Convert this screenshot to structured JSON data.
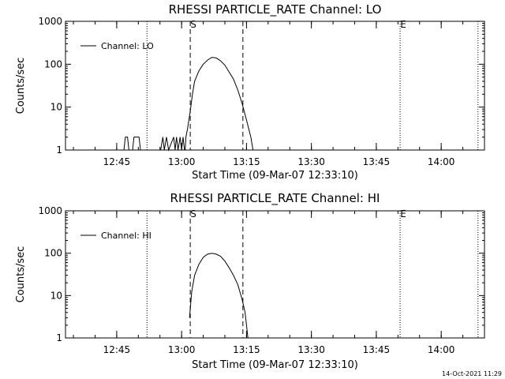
{
  "footer": {
    "timestamp": "14-Oct-2021 11:29"
  },
  "chart_data": [
    {
      "type": "line",
      "title": "RHESSI PARTICLE_RATE Channel: LO",
      "xlabel": "Start Time (09-Mar-07 12:33:10)",
      "ylabel": "Counts/sec",
      "yscale": "log",
      "ylim": [
        1,
        1000
      ],
      "yticks": [
        1,
        10,
        100,
        1000
      ],
      "ytick_labels": [
        "1",
        "10",
        "100",
        "1000"
      ],
      "xlim": [
        "12:33:10",
        "14:10"
      ],
      "xticks": [
        "12:45",
        "13:00",
        "13:15",
        "13:30",
        "13:45",
        "14:00"
      ],
      "legend": {
        "label": "Channel: LO",
        "position": "top-left"
      },
      "markers": {
        "start_label": "S",
        "start_time": "13:02:00",
        "end_label": "E",
        "end_time": "13:50:30",
        "dashed_lines": [
          "13:02:00",
          "13:14:10"
        ],
        "dotted_lines": [
          "12:52:00",
          "13:50:30",
          "14:08:30"
        ]
      },
      "series": [
        {
          "name": "Channel: LO",
          "segments": [
            [
              [
                "12:46:40",
                1
              ],
              [
                "12:47:00",
                2
              ],
              [
                "12:47:30",
                2
              ],
              [
                "12:47:50",
                1
              ]
            ],
            [
              [
                "12:48:40",
                1
              ],
              [
                "12:49:00",
                2
              ],
              [
                "12:50:10",
                2
              ],
              [
                "12:50:30",
                1
              ]
            ],
            [
              [
                "12:55:10",
                1
              ],
              [
                "12:55:40",
                2
              ],
              [
                "12:56:00",
                1
              ],
              [
                "12:56:30",
                2
              ],
              [
                "12:57:00",
                1
              ],
              [
                "12:58:10",
                2
              ],
              [
                "12:58:30",
                1
              ],
              [
                "12:58:50",
                2
              ],
              [
                "12:59:10",
                1
              ],
              [
                "12:59:40",
                2
              ],
              [
                "13:00:00",
                1
              ],
              [
                "13:00:20",
                2
              ],
              [
                "13:00:40",
                1
              ],
              [
                "13:00:50",
                1
              ],
              [
                "13:01:00",
                2
              ],
              [
                "13:01:20",
                3
              ],
              [
                "13:02:00",
                8
              ],
              [
                "13:02:30",
                20
              ],
              [
                "13:03:00",
                40
              ],
              [
                "13:04:00",
                70
              ],
              [
                "13:05:00",
                100
              ],
              [
                "13:06:00",
                125
              ],
              [
                "13:07:00",
                145
              ],
              [
                "13:08:00",
                140
              ],
              [
                "13:09:00",
                120
              ],
              [
                "13:10:00",
                95
              ],
              [
                "13:11:00",
                65
              ],
              [
                "13:12:00",
                45
              ],
              [
                "13:13:00",
                25
              ],
              [
                "13:14:00",
                12
              ],
              [
                "13:15:00",
                5
              ],
              [
                "13:16:00",
                2
              ],
              [
                "13:16:30",
                1
              ]
            ]
          ]
        }
      ]
    },
    {
      "type": "line",
      "title": "RHESSI PARTICLE_RATE Channel: HI",
      "xlabel": "Start Time (09-Mar-07 12:33:10)",
      "ylabel": "Counts/sec",
      "yscale": "log",
      "ylim": [
        1,
        1000
      ],
      "yticks": [
        1,
        10,
        100,
        1000
      ],
      "ytick_labels": [
        "1",
        "10",
        "100",
        "1000"
      ],
      "xlim": [
        "12:33:10",
        "14:10"
      ],
      "xticks": [
        "12:45",
        "13:00",
        "13:15",
        "13:30",
        "13:45",
        "14:00"
      ],
      "legend": {
        "label": "Channel: HI",
        "position": "top-left"
      },
      "markers": {
        "start_label": "S",
        "start_time": "13:02:00",
        "end_label": "E",
        "end_time": "13:50:30",
        "dashed_lines": [
          "13:02:00",
          "13:14:10"
        ],
        "dotted_lines": [
          "12:52:00",
          "13:50:30",
          "14:08:30"
        ]
      },
      "series": [
        {
          "name": "Channel: HI",
          "segments": [
            [
              [
                "13:01:50",
                3
              ],
              [
                "13:02:20",
                12
              ],
              [
                "13:03:00",
                30
              ],
              [
                "13:04:00",
                55
              ],
              [
                "13:05:00",
                80
              ],
              [
                "13:06:00",
                95
              ],
              [
                "13:07:00",
                100
              ],
              [
                "13:08:00",
                95
              ],
              [
                "13:09:00",
                85
              ],
              [
                "13:10:00",
                65
              ],
              [
                "13:11:00",
                45
              ],
              [
                "13:12:00",
                30
              ],
              [
                "13:13:00",
                18
              ],
              [
                "13:14:00",
                8
              ],
              [
                "13:14:40",
                4
              ],
              [
                "13:15:00",
                2
              ],
              [
                "13:15:20",
                1
              ]
            ]
          ]
        }
      ]
    }
  ]
}
